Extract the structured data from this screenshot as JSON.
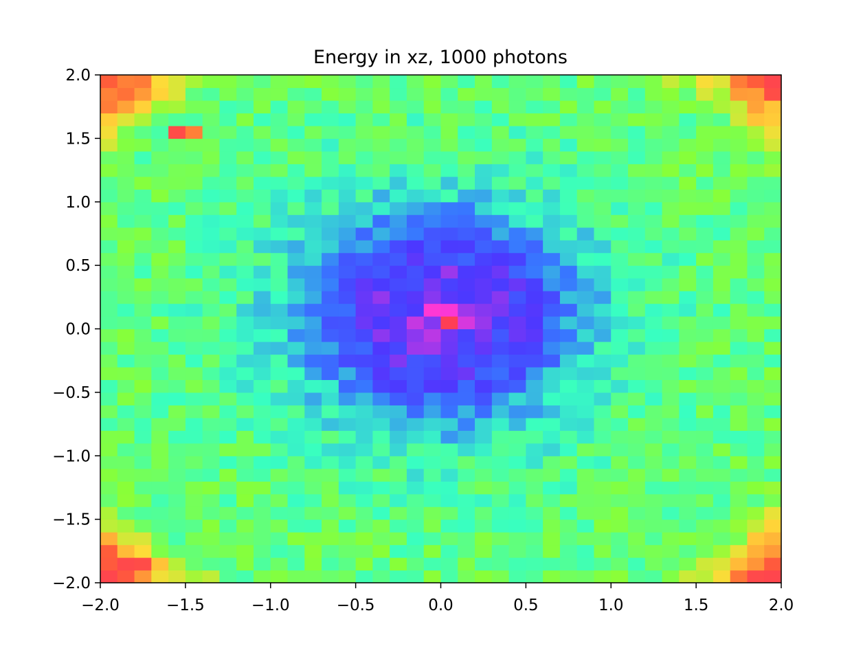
{
  "chart_data": {
    "type": "heatmap",
    "title": "Energy in xz, 1000 photons",
    "xlabel": "",
    "ylabel": "",
    "xlim": [
      -2.0,
      2.0
    ],
    "ylim": [
      -2.0,
      2.0
    ],
    "grid": false,
    "nx": 40,
    "ny": 40,
    "bin_width": 0.1,
    "colormap": "gist_rainbow_r",
    "colormap_stops": [
      "#ff0029",
      "#ff3300",
      "#ffd000",
      "#66ff00",
      "#00ffb0",
      "#0050ff",
      "#1a00ff",
      "#ff00c8"
    ],
    "x_ticks": [
      -2.0,
      -1.5,
      -1.0,
      -0.5,
      0.0,
      0.5,
      1.0,
      1.5,
      2.0
    ],
    "y_ticks": [
      -2.0,
      -1.5,
      -1.0,
      -0.5,
      0.0,
      0.5,
      1.0,
      1.5,
      2.0
    ],
    "x_tick_labels": [
      "−2.0",
      "−1.5",
      "−1.0",
      "−0.5",
      "0.0",
      "0.5",
      "1.0",
      "1.5",
      "2.0"
    ],
    "y_tick_labels": [
      "−2.0",
      "−1.5",
      "−1.0",
      "−0.5",
      "0.0",
      "0.5",
      "1.0",
      "1.5",
      "2.0"
    ],
    "field_model": {
      "description": "normalized colormap level per bin (0 = red edge, 1 = magenta center)",
      "center": [
        0.0,
        0.1
      ],
      "core_level": 0.99,
      "ring_radius": 0.62,
      "ring_level": 0.82,
      "outer_level": 0.52,
      "corner_level": 0.15,
      "hot_bins": [
        {
          "x": -1.55,
          "y": 1.55,
          "level": 0.07
        },
        {
          "x": -1.45,
          "y": 1.55,
          "level": 0.18
        },
        {
          "x": -1.85,
          "y": -1.85,
          "level": 0.06
        },
        {
          "x": -1.75,
          "y": -1.85,
          "level": 0.07
        },
        {
          "x": -1.95,
          "y": -1.95,
          "level": 0.05
        },
        {
          "x": 1.95,
          "y": 1.95,
          "level": 0.05
        },
        {
          "x": 1.95,
          "y": -1.95,
          "level": 0.05
        },
        {
          "x": 1.85,
          "y": -1.95,
          "level": 0.06
        },
        {
          "x": 1.95,
          "y": -1.85,
          "level": 0.12
        },
        {
          "x": 0.05,
          "y": 0.05,
          "level": 0.02
        }
      ]
    }
  }
}
